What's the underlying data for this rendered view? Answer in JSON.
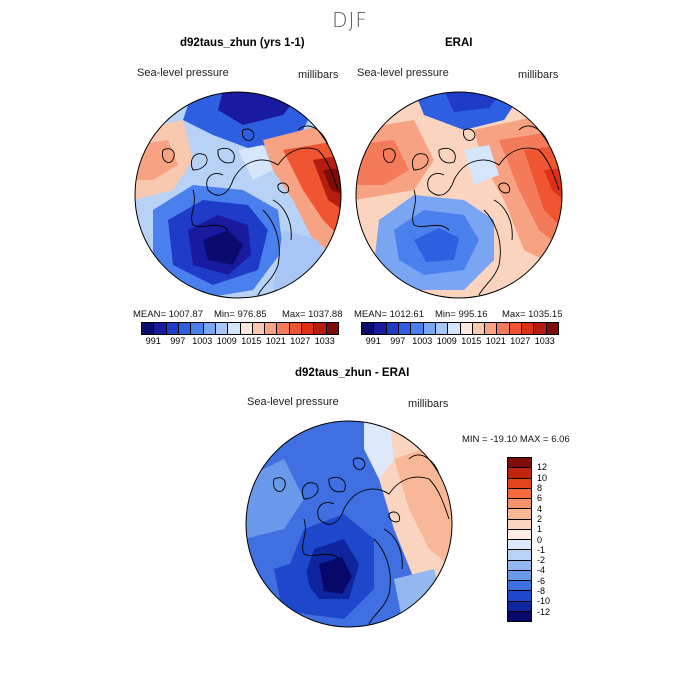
{
  "season": "DJF",
  "panels": [
    {
      "title": "d92taus_zhun (yrs 1-1)",
      "variable": "Sea-level pressure",
      "units": "millibars",
      "stats": {
        "mean": "MEAN= 1007.87",
        "min": "Min= 976.85",
        "max": "Max= 1037.88"
      }
    },
    {
      "title": "ERAI",
      "variable": "Sea-level pressure",
      "units": "millibars",
      "stats": {
        "mean": "MEAN= 1012.61",
        "min": "Min= 995.16",
        "max": "Max= 1035.15"
      }
    }
  ],
  "diff_panel": {
    "title": "d92taus_zhun - ERAI",
    "variable": "Sea-level pressure",
    "units": "millibars",
    "minmax": "MIN = -19.10 MAX =    6.06"
  },
  "abs_colorbar": {
    "colors": [
      "#0b0b6e",
      "#1a1aa0",
      "#1f3cc8",
      "#2d5fe0",
      "#4a80ee",
      "#7aa5f2",
      "#a8c6f5",
      "#d6e6fa",
      "#fce8df",
      "#f9c8b0",
      "#f6a283",
      "#f47b59",
      "#ee5530",
      "#dc3116",
      "#b41d10",
      "#7d0c0a"
    ],
    "tick_labels": [
      "991",
      "997",
      "1003",
      "1009",
      "1015",
      "1021",
      "1027",
      "1033"
    ]
  },
  "diff_colorbar": {
    "colors": [
      "#7d0c0a",
      "#c0240f",
      "#e3431c",
      "#f46a3c",
      "#f6926c",
      "#f8b797",
      "#fbd4c0",
      "#fcece3",
      "#dde9fa",
      "#b8d2f5",
      "#93b8ef",
      "#6b99ea",
      "#3f6fe0",
      "#1e48cc",
      "#0f25a0",
      "#08086a"
    ],
    "tick_labels": [
      "12",
      "10",
      "8",
      "6",
      "4",
      "2",
      "1",
      "0",
      "-1",
      "-2",
      "-4",
      "-6",
      "-8",
      "-10",
      "-12"
    ]
  }
}
